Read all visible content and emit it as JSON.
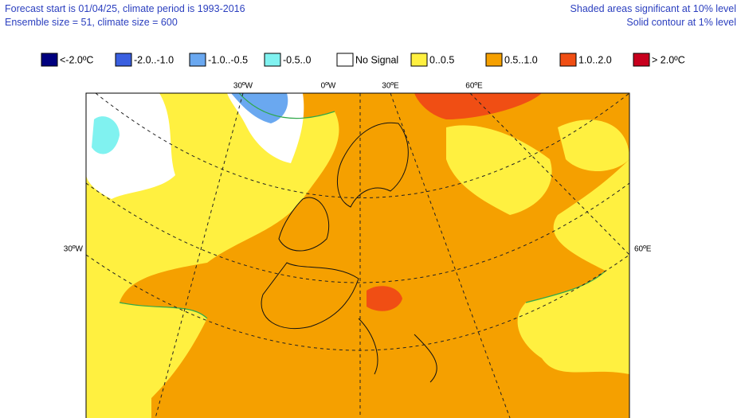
{
  "header": {
    "left": [
      "Forecast start is 01/04/25, climate period is 1993-2016",
      "Ensemble size = 51, climate size = 600"
    ],
    "right": [
      "Shaded areas significant at 10% level",
      "Solid contour at 1% level"
    ]
  },
  "legend": {
    "items": [
      {
        "label": "<-2.0ºC",
        "color": "#00007f"
      },
      {
        "label": "-2.0..-1.0",
        "color": "#3a5fe0"
      },
      {
        "label": "-1.0..-0.5",
        "color": "#6aa8f0"
      },
      {
        "label": "-0.5..0",
        "color": "#80f2f0"
      },
      {
        "label": "No Signal",
        "color": "#ffffff"
      },
      {
        "label": "0..0.5",
        "color": "#fff040"
      },
      {
        "label": "0.5..1.0",
        "color": "#f5a000"
      },
      {
        "label": "1.0..2.0",
        "color": "#f04e14"
      },
      {
        "label": "> 2.0ºC",
        "color": "#c8001e"
      }
    ]
  },
  "map": {
    "top_labels": [
      "30ºW",
      "0ºW",
      "30ºE",
      "60ºE"
    ],
    "left_label": "30ºW",
    "right_label": "60ºE"
  }
}
